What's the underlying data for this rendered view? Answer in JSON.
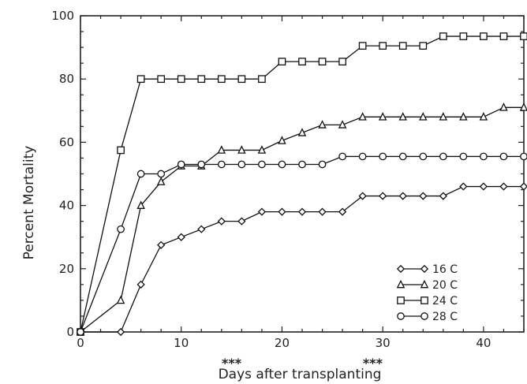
{
  "chart_data": {
    "type": "line",
    "title": "",
    "xlabel": "Days after transplanting",
    "ylabel": "Percent Mortality",
    "xlim": [
      0,
      44
    ],
    "ylim": [
      0,
      100
    ],
    "x_ticks": [
      0,
      10,
      20,
      30,
      40
    ],
    "y_ticks": [
      0,
      20,
      40,
      60,
      80,
      100
    ],
    "grid": false,
    "legend_position": "bottom-right",
    "annotations": [
      {
        "text": "***",
        "x": 15
      },
      {
        "text": "***",
        "x": 29
      }
    ],
    "series": [
      {
        "name": "16 C",
        "marker": "diamond",
        "x": [
          0,
          4,
          6,
          8,
          10,
          12,
          14,
          16,
          18,
          20,
          22,
          24,
          26,
          28,
          30,
          32,
          34,
          36,
          38,
          40,
          42,
          44
        ],
        "values": [
          0,
          0,
          15,
          27.5,
          30,
          32.5,
          35,
          35,
          38,
          38,
          38,
          38,
          38,
          43,
          43,
          43,
          43,
          43,
          46,
          46,
          46,
          46
        ]
      },
      {
        "name": "20 C",
        "marker": "triangle",
        "x": [
          0,
          4,
          6,
          8,
          10,
          12,
          14,
          16,
          18,
          20,
          22,
          24,
          26,
          28,
          30,
          32,
          34,
          36,
          38,
          40,
          42,
          44
        ],
        "values": [
          0,
          10,
          40,
          47.5,
          52.5,
          52.5,
          57.5,
          57.5,
          57.5,
          60.5,
          63,
          65.5,
          65.5,
          68,
          68,
          68,
          68,
          68,
          68,
          68,
          71,
          71
        ]
      },
      {
        "name": "24 C",
        "marker": "square",
        "x": [
          0,
          4,
          6,
          8,
          10,
          12,
          14,
          16,
          18,
          20,
          22,
          24,
          26,
          28,
          30,
          32,
          34,
          36,
          38,
          40,
          42,
          44
        ],
        "values": [
          0,
          57.5,
          80,
          80,
          80,
          80,
          80,
          80,
          80,
          85.5,
          85.5,
          85.5,
          85.5,
          90.5,
          90.5,
          90.5,
          90.5,
          93.5,
          93.5,
          93.5,
          93.5,
          93.5
        ]
      },
      {
        "name": "28 C",
        "marker": "circle",
        "x": [
          0,
          4,
          6,
          8,
          10,
          12,
          14,
          16,
          18,
          20,
          22,
          24,
          26,
          28,
          30,
          32,
          34,
          36,
          38,
          40,
          42,
          44
        ],
        "values": [
          0,
          32.5,
          50,
          50,
          53,
          53,
          53,
          53,
          53,
          53,
          53,
          53,
          55.5,
          55.5,
          55.5,
          55.5,
          55.5,
          55.5,
          55.5,
          55.5,
          55.5,
          55.5
        ]
      }
    ]
  }
}
